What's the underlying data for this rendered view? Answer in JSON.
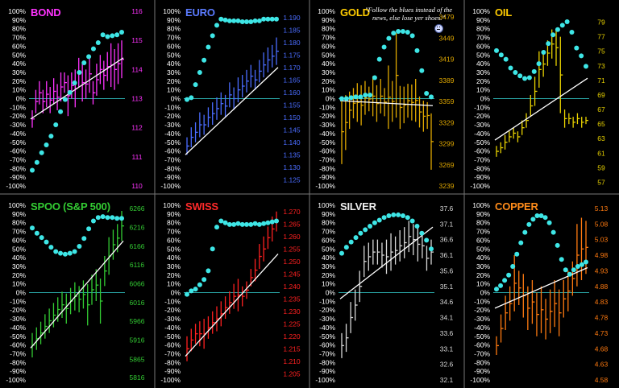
{
  "pct_ticks": [
    "100%",
    "90%",
    "80%",
    "70%",
    "60%",
    "50%",
    "40%",
    "30%",
    "20%",
    "10%",
    "0%",
    "-10%",
    "-20%",
    "-30%",
    "-40%",
    "-50%",
    "-60%",
    "-70%",
    "-80%",
    "-90%",
    "-100%"
  ],
  "quote": "\"Follow the blues instead of the news, else lose yer shoes.\"",
  "colors": {
    "background": "#000000",
    "baby_blues": "#3ee6e6",
    "zero_line": "#2aa7a7",
    "trend_line": "#ffffff",
    "grid_divider": "#777777"
  },
  "chart_data": [
    {
      "type": "bar",
      "title": "BOND",
      "title_color": "#ff33ff",
      "bar_color": "#ff33ff",
      "price_ticks": [
        116,
        115,
        114,
        113,
        112,
        111,
        110
      ],
      "price_tick_labels": [
        "116",
        "115",
        "114",
        "113",
        "112",
        "111",
        "110"
      ],
      "ylim": [
        110,
        116
      ],
      "bars": [
        [
          112.0,
          112.6
        ],
        [
          112.5,
          113.3
        ],
        [
          112.8,
          113.6
        ],
        [
          112.5,
          113.3
        ],
        [
          112.7,
          113.6
        ],
        [
          112.5,
          113.4
        ],
        [
          112.8,
          113.7
        ],
        [
          112.6,
          113.5
        ],
        [
          112.9,
          113.9
        ],
        [
          113.2,
          113.9
        ],
        [
          112.4,
          113.8
        ],
        [
          113.0,
          113.9
        ],
        [
          112.7,
          114.0
        ],
        [
          113.4,
          114.4
        ],
        [
          112.9,
          114.2
        ],
        [
          113.0,
          114.0
        ],
        [
          113.2,
          114.5
        ],
        [
          112.8,
          113.6
        ],
        [
          113.1,
          114.2
        ],
        [
          113.5,
          114.5
        ],
        [
          113.3,
          114.3
        ],
        [
          113.6,
          114.6
        ],
        [
          113.4,
          114.9
        ],
        [
          113.3,
          114.7
        ],
        [
          113.5,
          114.9
        ],
        [
          113.7,
          115.0
        ]
      ],
      "trend": [
        112.3,
        114.4
      ],
      "baby_blues": [
        -0.82,
        -0.73,
        -0.62,
        -0.53,
        -0.43,
        -0.3,
        -0.15,
        -0.01,
        0.07,
        0.18,
        0.3,
        0.41,
        0.48,
        0.57,
        0.64,
        0.73,
        0.71,
        0.72,
        0.73,
        0.76
      ]
    },
    {
      "type": "bar",
      "title": "EURO",
      "title_color": "#5b7bff",
      "bar_color": "#4a6cff",
      "price_ticks": [
        1.19,
        1.185,
        1.18,
        1.175,
        1.17,
        1.165,
        1.16,
        1.155,
        1.15,
        1.145,
        1.14,
        1.135,
        1.13,
        1.125
      ],
      "price_tick_labels": [
        "1.190",
        "1.185",
        "1.180",
        "1.175",
        "1.170",
        "1.165",
        "1.160",
        "1.155",
        "1.150",
        "1.145",
        "1.140",
        "1.135",
        "1.130",
        "1.125"
      ],
      "ylim": [
        1.1225,
        1.1925
      ],
      "bars": [
        [
          1.135,
          1.142
        ],
        [
          1.138,
          1.146
        ],
        [
          1.14,
          1.148
        ],
        [
          1.142,
          1.152
        ],
        [
          1.143,
          1.151
        ],
        [
          1.146,
          1.154
        ],
        [
          1.147,
          1.156
        ],
        [
          1.149,
          1.158
        ],
        [
          1.151,
          1.16
        ],
        [
          1.15,
          1.159
        ],
        [
          1.154,
          1.164
        ],
        [
          1.153,
          1.162
        ],
        [
          1.156,
          1.166
        ],
        [
          1.158,
          1.167
        ],
        [
          1.16,
          1.169
        ],
        [
          1.162,
          1.171
        ],
        [
          1.161,
          1.169
        ],
        [
          1.164,
          1.173
        ],
        [
          1.166,
          1.176
        ],
        [
          1.168,
          1.178
        ],
        [
          1.17,
          1.179
        ],
        [
          1.171,
          1.182
        ]
      ],
      "trend": [
        1.135,
        1.17
      ],
      "baby_blues": [
        -0.01,
        0.01,
        0.16,
        0.3,
        0.44,
        0.59,
        0.72,
        0.84,
        0.91,
        0.9,
        0.89,
        0.89,
        0.89,
        0.88,
        0.88,
        0.88,
        0.89,
        0.89,
        0.91,
        0.91,
        0.91,
        0.91
      ]
    },
    {
      "type": "bar",
      "title": "GOLD",
      "title_color": "#ffcc00",
      "bar_color": "#e0a800",
      "price_ticks": [
        3479,
        3449,
        3419,
        3389,
        3359,
        3329,
        3299,
        3269,
        3239
      ],
      "price_tick_labels": [
        "3479",
        "3449",
        "3419",
        "3389",
        "3359",
        "3329",
        "3299",
        "3269",
        "3239"
      ],
      "ylim": [
        3239,
        3487
      ],
      "bars": [
        [
          3270,
          3362
        ],
        [
          3290,
          3368
        ],
        [
          3320,
          3373
        ],
        [
          3335,
          3378
        ],
        [
          3330,
          3385
        ],
        [
          3325,
          3382
        ],
        [
          3340,
          3388
        ],
        [
          3345,
          3380
        ],
        [
          3338,
          3395
        ],
        [
          3330,
          3382
        ],
        [
          3342,
          3391
        ],
        [
          3338,
          3378
        ],
        [
          3320,
          3410
        ],
        [
          3330,
          3388
        ],
        [
          3336,
          3456
        ],
        [
          3320,
          3381
        ],
        [
          3328,
          3380
        ],
        [
          3336,
          3384
        ],
        [
          3332,
          3383
        ],
        [
          3330,
          3391
        ],
        [
          3322,
          3366
        ],
        [
          3316,
          3360
        ],
        [
          3320,
          3358
        ],
        [
          3262,
          3342
        ]
      ],
      "trend": [
        3360,
        3353
      ],
      "baby_blues": [
        0.0,
        0.0,
        0.01,
        0.02,
        0.02,
        0.04,
        0.04,
        0.24,
        0.45,
        0.59,
        0.69,
        0.75,
        0.77,
        0.77,
        0.76,
        0.72,
        0.55,
        0.32,
        0.06,
        0.02
      ]
    },
    {
      "type": "bar",
      "title": "OIL",
      "title_color": "#ffcc00",
      "bar_color": "#e8d200",
      "price_ticks": [
        79,
        77,
        75,
        73,
        71,
        69,
        67,
        65,
        63,
        61,
        59,
        57
      ],
      "price_tick_labels": [
        "79",
        "77",
        "75",
        "73",
        "71",
        "69",
        "67",
        "65",
        "63",
        "61",
        "59",
        "57"
      ],
      "ylim": [
        56.5,
        80.5
      ],
      "bars": [
        [
          60.5,
          62.0
        ],
        [
          61.0,
          62.5
        ],
        [
          61.5,
          63.5
        ],
        [
          62.5,
          64.0
        ],
        [
          63.0,
          64.5
        ],
        [
          62.5,
          64.0
        ],
        [
          63.5,
          65.5
        ],
        [
          64.5,
          66.5
        ],
        [
          66.0,
          69.0
        ],
        [
          67.5,
          71.5
        ],
        [
          70.0,
          75.0
        ],
        [
          71.5,
          75.0
        ],
        [
          73.0,
          76.5
        ],
        [
          74.0,
          78.0
        ],
        [
          73.0,
          78.0
        ],
        [
          66.5,
          77.0
        ],
        [
          64.5,
          67.0
        ],
        [
          65.0,
          66.5
        ],
        [
          64.5,
          66.0
        ],
        [
          65.0,
          66.5
        ],
        [
          64.5,
          66.0
        ],
        [
          65.0,
          66.0
        ]
      ],
      "trend": [
        62.8,
        71.3
      ],
      "baby_blues": [
        0.55,
        0.5,
        0.45,
        0.35,
        0.3,
        0.26,
        0.23,
        0.24,
        0.31,
        0.4,
        0.53,
        0.63,
        0.73,
        0.79,
        0.84,
        0.88,
        0.76,
        0.58,
        0.49,
        0.37
      ]
    },
    {
      "type": "bar",
      "title": "SPOO (S&P 500)",
      "title_color": "#33cc33",
      "bar_color": "#33cc33",
      "price_ticks": [
        6266,
        6216,
        6166,
        6116,
        6066,
        6016,
        5966,
        5916,
        5865,
        5816
      ],
      "price_tick_labels": [
        "6266",
        "6216",
        "6166",
        "6116",
        "6066",
        "6016",
        "5966",
        "5916",
        "5865",
        "5816"
      ],
      "ylim": [
        5810,
        6275
      ],
      "bars": [
        [
          5870,
          5935
        ],
        [
          5890,
          5950
        ],
        [
          5905,
          5965
        ],
        [
          5920,
          5985
        ],
        [
          5935,
          6000
        ],
        [
          5950,
          6015
        ],
        [
          5965,
          6030
        ],
        [
          5975,
          6045
        ],
        [
          5960,
          6040
        ],
        [
          5985,
          6055
        ],
        [
          5995,
          6070
        ],
        [
          5990,
          6060
        ],
        [
          6000,
          6075
        ],
        [
          5955,
          6065
        ],
        [
          6010,
          6090
        ],
        [
          6020,
          6105
        ],
        [
          5960,
          6080
        ],
        [
          6060,
          6140
        ],
        [
          6090,
          6190
        ],
        [
          6130,
          6210
        ],
        [
          6150,
          6225
        ],
        [
          6180,
          6260
        ]
      ],
      "trend": [
        5895,
        6180
      ],
      "baby_blues": [
        0.74,
        0.68,
        0.63,
        0.58,
        0.52,
        0.47,
        0.45,
        0.44,
        0.45,
        0.47,
        0.53,
        0.62,
        0.73,
        0.82,
        0.86,
        0.87,
        0.86,
        0.86,
        0.85,
        0.85
      ]
    },
    {
      "type": "bar",
      "title": "SWISS",
      "title_color": "#ff2a2a",
      "bar_color": "#ff2020",
      "price_ticks": [
        1.27,
        1.265,
        1.26,
        1.255,
        1.25,
        1.245,
        1.24,
        1.235,
        1.23,
        1.225,
        1.22,
        1.215,
        1.21,
        1.205
      ],
      "price_tick_labels": [
        "1.270",
        "1.265",
        "1.260",
        "1.255",
        "1.250",
        "1.245",
        "1.240",
        "1.235",
        "1.230",
        "1.225",
        "1.220",
        "1.215",
        "1.210",
        "1.205"
      ],
      "ylim": [
        1.2025,
        1.2725
      ],
      "bars": [
        [
          1.21,
          1.22
        ],
        [
          1.214,
          1.223
        ],
        [
          1.217,
          1.225
        ],
        [
          1.216,
          1.226
        ],
        [
          1.215,
          1.227
        ],
        [
          1.219,
          1.228
        ],
        [
          1.221,
          1.23
        ],
        [
          1.222,
          1.232
        ],
        [
          1.224,
          1.234
        ],
        [
          1.227,
          1.236
        ],
        [
          1.229,
          1.238
        ],
        [
          1.231,
          1.241
        ],
        [
          1.23,
          1.243
        ],
        [
          1.232,
          1.24
        ],
        [
          1.235,
          1.242
        ],
        [
          1.24,
          1.247
        ],
        [
          1.242,
          1.251
        ],
        [
          1.247,
          1.257
        ],
        [
          1.25,
          1.26
        ],
        [
          1.255,
          1.264
        ],
        [
          1.258,
          1.268
        ],
        [
          1.262,
          1.27
        ]
      ],
      "trend": [
        1.212,
        1.253
      ],
      "baby_blues": [
        -0.02,
        0.02,
        0.04,
        0.09,
        0.15,
        0.25,
        0.5,
        0.75,
        0.82,
        0.8,
        0.78,
        0.78,
        0.79,
        0.78,
        0.78,
        0.78,
        0.79,
        0.78,
        0.79,
        0.8,
        0.81,
        0.82
      ]
    },
    {
      "type": "bar",
      "title": "SILVER",
      "title_color": "#eeeeee",
      "bar_color": "#d8d8d8",
      "price_ticks": [
        37.6,
        37.1,
        36.6,
        36.1,
        35.6,
        35.1,
        34.6,
        34.1,
        33.6,
        33.1,
        32.6,
        32.1
      ],
      "price_tick_labels": [
        "37.6",
        "37.1",
        "36.6",
        "36.1",
        "35.6",
        "35.1",
        "34.6",
        "34.1",
        "33.6",
        "33.1",
        "32.6",
        "32.1"
      ],
      "ylim": [
        32.1,
        37.7
      ],
      "bars": [
        [
          32.8,
          33.6
        ],
        [
          33.0,
          33.9
        ],
        [
          33.6,
          34.6
        ],
        [
          34.0,
          35.0
        ],
        [
          34.6,
          35.6
        ],
        [
          35.4,
          36.4
        ],
        [
          35.6,
          36.5
        ],
        [
          35.8,
          36.6
        ],
        [
          35.8,
          36.6
        ],
        [
          35.7,
          36.5
        ],
        [
          35.5,
          36.6
        ],
        [
          35.6,
          36.8
        ],
        [
          35.8,
          36.7
        ],
        [
          35.9,
          36.9
        ],
        [
          36.0,
          37.0
        ],
        [
          36.2,
          37.2
        ],
        [
          36.1,
          37.1
        ],
        [
          35.9,
          37.0
        ],
        [
          36.0,
          36.8
        ],
        [
          35.6,
          36.4
        ],
        [
          35.8,
          36.6
        ]
      ],
      "trend": [
        34.7,
        37.0
      ],
      "baby_blues": [
        0.45,
        0.52,
        0.58,
        0.63,
        0.68,
        0.72,
        0.76,
        0.8,
        0.83,
        0.86,
        0.88,
        0.89,
        0.89,
        0.88,
        0.86,
        0.82,
        0.76,
        0.68,
        0.6,
        0.5
      ]
    },
    {
      "type": "bar",
      "title": "COPPER",
      "title_color": "#ff8c1a",
      "bar_color": "#ff7a10",
      "price_ticks": [
        5.13,
        5.08,
        5.03,
        4.98,
        4.93,
        4.88,
        4.83,
        4.78,
        4.73,
        4.68,
        4.63,
        4.58
      ],
      "price_tick_labels": [
        "5.13",
        "5.08",
        "5.03",
        "4.98",
        "4.93",
        "4.88",
        "4.83",
        "4.78",
        "4.73",
        "4.68",
        "4.63",
        "4.58"
      ],
      "ylim": [
        4.58,
        5.14
      ],
      "bars": [
        [
          4.66,
          4.72
        ],
        [
          4.7,
          4.79
        ],
        [
          4.74,
          4.85
        ],
        [
          4.77,
          4.88
        ],
        [
          4.8,
          4.98
        ],
        [
          4.82,
          4.93
        ],
        [
          4.78,
          4.92
        ],
        [
          4.74,
          4.88
        ],
        [
          4.76,
          4.9
        ],
        [
          4.72,
          4.86
        ],
        [
          4.73,
          4.88
        ],
        [
          4.71,
          4.84
        ],
        [
          4.73,
          4.87
        ],
        [
          4.75,
          4.9
        ],
        [
          4.72,
          4.87
        ],
        [
          4.78,
          4.9
        ],
        [
          4.8,
          4.93
        ],
        [
          4.85,
          4.96
        ],
        [
          4.88,
          5.08
        ],
        [
          4.9,
          5.1
        ],
        [
          4.92,
          5.09
        ]
      ],
      "trend": [
        4.81,
        4.94
      ],
      "baby_blues": [
        0.04,
        0.08,
        0.14,
        0.2,
        0.3,
        0.44,
        0.57,
        0.69,
        0.78,
        0.84,
        0.88,
        0.88,
        0.86,
        0.8,
        0.69,
        0.54,
        0.38,
        0.26,
        0.21,
        0.26,
        0.3,
        0.32,
        0.35
      ]
    }
  ]
}
